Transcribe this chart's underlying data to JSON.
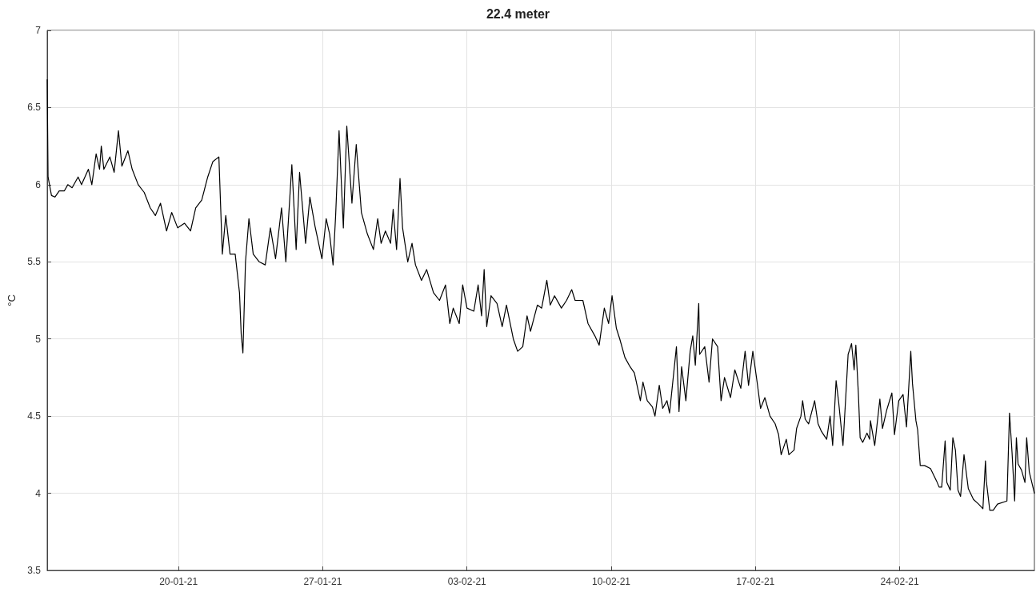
{
  "chart_data": {
    "type": "line",
    "title": "22.4 meter",
    "ylabel": "°C",
    "x": [
      "--01-13T15:00",
      "--01-13T16:00",
      "--01-13T20:00",
      "--01-14T00:00",
      "--01-14T05:00",
      "--01-14T11:00",
      "--01-14T15:00",
      "--01-14T20:00",
      "--01-15T03:00",
      "--01-15T07:00",
      "--01-15T15:00",
      "--01-15T19:00",
      "--01-16T00:00",
      "--01-16T04:00",
      "--01-16T06:00",
      "--01-16T09:00",
      "--01-16T16:00",
      "--01-16T21:00",
      "--01-17T02:00",
      "--01-17T06:00",
      "--01-17T13:00",
      "--01-17T18:00",
      "--01-18T01:00",
      "--01-18T08:00",
      "--01-18T15:00",
      "--01-18T21:00",
      "--01-19T03:00",
      "--01-19T10:00",
      "--01-19T16:00",
      "--01-19T23:00",
      "--01-20T07:00",
      "--01-20T14:00",
      "--01-20T20:00",
      "--01-21T03:00",
      "--01-21T10:00",
      "--01-21T16:00",
      "--01-21T23:00",
      "--01-22T03:00",
      "--01-22T07:00",
      "--01-22T12:00",
      "--01-22T18:00",
      "--01-22T23:00",
      "--01-23T01:00",
      "--01-23T03:00",
      "--01-23T06:00",
      "--01-23T10:00",
      "--01-23T15:00",
      "--01-23T22:00",
      "--01-24T05:00",
      "--01-24T11:00",
      "--01-24T17:00",
      "--01-25T00:00",
      "--01-25T05:00",
      "--01-25T12:00",
      "--01-25T17:00",
      "--01-25T21:00",
      "--01-26T04:00",
      "--01-26T09:00",
      "--01-26T15:00",
      "--01-26T23:00",
      "--01-27T04:00",
      "--01-27T08:00",
      "--01-27T12:00",
      "--01-27T15:00",
      "--01-27T19:00",
      "--01-28T00:00",
      "--01-28T04:00",
      "--01-28T10:00",
      "--01-28T15:00",
      "--01-28T21:00",
      "--01-29T04:00",
      "--01-29T11:00",
      "--01-29T16:00",
      "--01-29T20:00",
      "--01-30T01:00",
      "--01-30T07:00",
      "--01-30T10:00",
      "--01-30T14:00",
      "--01-30T18:00",
      "--01-30T21:00",
      "--01-31T03:00",
      "--01-31T08:00",
      "--01-31T12:00",
      "--01-31T19:00",
      "--02-01T01:00",
      "--02-01T09:00",
      "--02-01T16:00",
      "--02-01T23:00",
      "--02-02T04:00",
      "--02-02T08:00",
      "--02-02T15:00",
      "--02-02T19:00",
      "--02-03T00:00",
      "--02-03T08:00",
      "--02-03T13:00",
      "--02-03T17:00",
      "--02-03T20:00",
      "--02-03T23:00",
      "--02-04T04:00",
      "--02-04T11:00",
      "--02-04T17:00",
      "--02-04T22:00",
      "--02-05T06:00",
      "--02-05T11:00",
      "--02-05T17:00",
      "--02-05T22:00",
      "--02-06T02:00",
      "--02-06T10:00",
      "--02-06T15:00",
      "--02-06T21:00",
      "--02-07T01:00",
      "--02-07T06:00",
      "--02-07T14:00",
      "--02-07T20:00",
      "--02-08T02:00",
      "--02-08T06:00",
      "--02-08T15:00",
      "--02-08T21:00",
      "--02-09T05:00",
      "--02-09T10:00",
      "--02-09T16:00",
      "--02-09T21:00",
      "--02-10T01:00",
      "--02-10T06:00",
      "--02-10T10:00",
      "--02-10T16:00",
      "--02-10T22:00",
      "--02-11T03:00",
      "--02-11T10:00",
      "--02-11T13:00",
      "--02-11T18:00",
      "--02-12T00:00",
      "--02-12T03:00",
      "--02-12T08:00",
      "--02-12T12:00",
      "--02-12T17:00",
      "--02-12T20:00",
      "--02-13T04:00",
      "--02-13T07:00",
      "--02-13T10:00",
      "--02-13T15:00",
      "--02-13T20:00",
      "--02-13T23:00",
      "--02-14T02:00",
      "--02-14T06:00",
      "--02-14T07:00",
      "--02-14T13:00",
      "--02-14T18:00",
      "--02-14T22:00",
      "--02-15T04:00",
      "--02-15T08:00",
      "--02-15T12:00",
      "--02-15T19:00",
      "--02-16T00:00",
      "--02-16T07:00",
      "--02-16T12:00",
      "--02-16T16:00",
      "--02-16T21:00",
      "--02-17T02:00",
      "--02-17T06:00",
      "--02-17T11:00",
      "--02-17T17:00",
      "--02-17T23:00",
      "--02-18T03:00",
      "--02-18T06:00",
      "--02-18T12:00",
      "--02-18T15:00",
      "--02-18T21:00",
      "--02-19T00:00",
      "--02-19T05:00",
      "--02-19T07:00",
      "--02-19T10:00",
      "--02-19T14:00",
      "--02-19T21:00",
      "--02-20T01:00",
      "--02-20T05:00",
      "--02-20T11:00",
      "--02-20T15:00",
      "--02-20T18:00",
      "--02-20T22:00",
      "--02-21T01:00",
      "--02-21T06:00",
      "--02-21T09:00",
      "--02-21T12:00",
      "--02-21T16:00",
      "--02-21T19:00",
      "--02-21T21:00",
      "--02-22T00:00",
      "--02-22T02:00",
      "--02-22T05:00",
      "--02-22T10:00",
      "--02-22T13:00",
      "--02-22T14:00",
      "--02-22T19:00",
      "--02-23T01:00",
      "--02-23T04:00",
      "--02-23T09:00",
      "--02-23T15:00",
      "--02-23T18:00",
      "--02-23T23:00",
      "--02-24T04:00",
      "--02-24T08:00",
      "--02-24T13:00",
      "--02-24T15:00",
      "--02-24T19:00",
      "--02-24T21:00",
      "--02-25T00:00",
      "--02-25T05:00",
      "--02-25T12:00",
      "--02-25T19:00",
      "--02-25T22:00",
      "--02-26T01:00",
      "--02-26T05:00",
      "--02-26T07:00",
      "--02-26T11:00",
      "--02-26T14:00",
      "--02-26T17:00",
      "--02-26T20:00",
      "--02-26T23:00",
      "--02-27T03:00",
      "--02-27T08:00",
      "--02-27T14:00",
      "--02-27T20:00",
      "--02-28T01:00",
      "--02-28T04:00",
      "--02-28T05:00",
      "--02-28T09:00",
      "--02-28T13:00",
      "--02-28T18:00",
      "--03-01T05:00",
      "--03-01T08:00",
      "--03-01T11:00",
      "--03-01T14:00",
      "--03-01T16:00",
      "--03-01T18:00",
      "--03-01T22:00",
      "--03-02T02:00",
      "--03-02T04:00",
      "--03-02T07:00",
      "--03-02T13:00"
    ],
    "series": [
      {
        "color": "#000000",
        "values": [
          6.68,
          6.05,
          5.93,
          5.92,
          5.96,
          5.96,
          6.0,
          5.98,
          6.05,
          6.0,
          6.1,
          6.0,
          6.2,
          6.1,
          6.25,
          6.1,
          6.18,
          6.08,
          6.35,
          6.12,
          6.22,
          6.1,
          6.0,
          5.95,
          5.85,
          5.8,
          5.88,
          5.7,
          5.82,
          5.72,
          5.75,
          5.7,
          5.85,
          5.9,
          6.05,
          6.15,
          6.18,
          5.55,
          5.8,
          5.55,
          5.55,
          5.3,
          5.03,
          4.91,
          5.5,
          5.78,
          5.55,
          5.5,
          5.48,
          5.72,
          5.52,
          5.85,
          5.5,
          6.13,
          5.58,
          6.08,
          5.62,
          5.92,
          5.73,
          5.52,
          5.78,
          5.68,
          5.48,
          5.8,
          6.35,
          5.72,
          6.38,
          5.88,
          6.26,
          5.82,
          5.68,
          5.58,
          5.78,
          5.62,
          5.7,
          5.62,
          5.84,
          5.58,
          6.04,
          5.72,
          5.5,
          5.62,
          5.48,
          5.38,
          5.45,
          5.3,
          5.25,
          5.35,
          5.1,
          5.2,
          5.1,
          5.35,
          5.2,
          5.18,
          5.35,
          5.15,
          5.45,
          5.08,
          5.28,
          5.23,
          5.08,
          5.22,
          5.0,
          4.92,
          4.95,
          5.15,
          5.05,
          5.22,
          5.2,
          5.38,
          5.22,
          5.28,
          5.2,
          5.25,
          5.32,
          5.25,
          5.25,
          5.1,
          5.02,
          4.96,
          5.2,
          5.1,
          5.28,
          5.07,
          5.0,
          4.88,
          4.82,
          4.78,
          4.6,
          4.72,
          4.6,
          4.56,
          4.5,
          4.7,
          4.55,
          4.6,
          4.52,
          4.95,
          4.53,
          4.82,
          4.6,
          4.92,
          5.02,
          4.83,
          5.23,
          4.9,
          4.95,
          4.72,
          5.0,
          4.95,
          4.6,
          4.75,
          4.62,
          4.8,
          4.68,
          4.92,
          4.7,
          4.92,
          4.72,
          4.55,
          4.62,
          4.5,
          4.45,
          4.38,
          4.25,
          4.35,
          4.25,
          4.28,
          4.42,
          4.5,
          4.6,
          4.48,
          4.45,
          4.6,
          4.45,
          4.4,
          4.35,
          4.5,
          4.31,
          4.73,
          4.59,
          4.31,
          4.6,
          4.9,
          4.97,
          4.8,
          4.96,
          4.64,
          4.36,
          4.33,
          4.39,
          4.35,
          4.47,
          4.31,
          4.61,
          4.42,
          4.54,
          4.65,
          4.38,
          4.6,
          4.64,
          4.43,
          4.92,
          4.71,
          4.47,
          4.41,
          4.18,
          4.18,
          4.16,
          4.08,
          4.04,
          4.04,
          4.34,
          4.07,
          4.02,
          4.36,
          4.28,
          4.02,
          3.98,
          4.25,
          4.03,
          3.96,
          3.93,
          3.9,
          4.21,
          4.08,
          3.89,
          3.89,
          3.93,
          3.95,
          4.52,
          4.26,
          3.95,
          4.36,
          4.19,
          4.15,
          4.07,
          4.36,
          4.14,
          4.0
        ]
      }
    ],
    "xlim": [
      "--01-13T15:00",
      "--03-02T13:00"
    ],
    "xticks": [
      {
        "value": "--01-20",
        "label": "20-01-21"
      },
      {
        "value": "--01-27",
        "label": "27-01-21"
      },
      {
        "value": "--02-03",
        "label": "03-02-21"
      },
      {
        "value": "--02-10",
        "label": "10-02-21"
      },
      {
        "value": "--02-17",
        "label": "17-02-21"
      },
      {
        "value": "--02-24",
        "label": "24-02-21"
      }
    ],
    "ylim": [
      3.5,
      7
    ],
    "yticks": [
      3.5,
      4,
      4.5,
      5,
      5.5,
      6,
      6.5,
      7
    ],
    "grid": true,
    "marker": "none",
    "line_style": "solid"
  }
}
